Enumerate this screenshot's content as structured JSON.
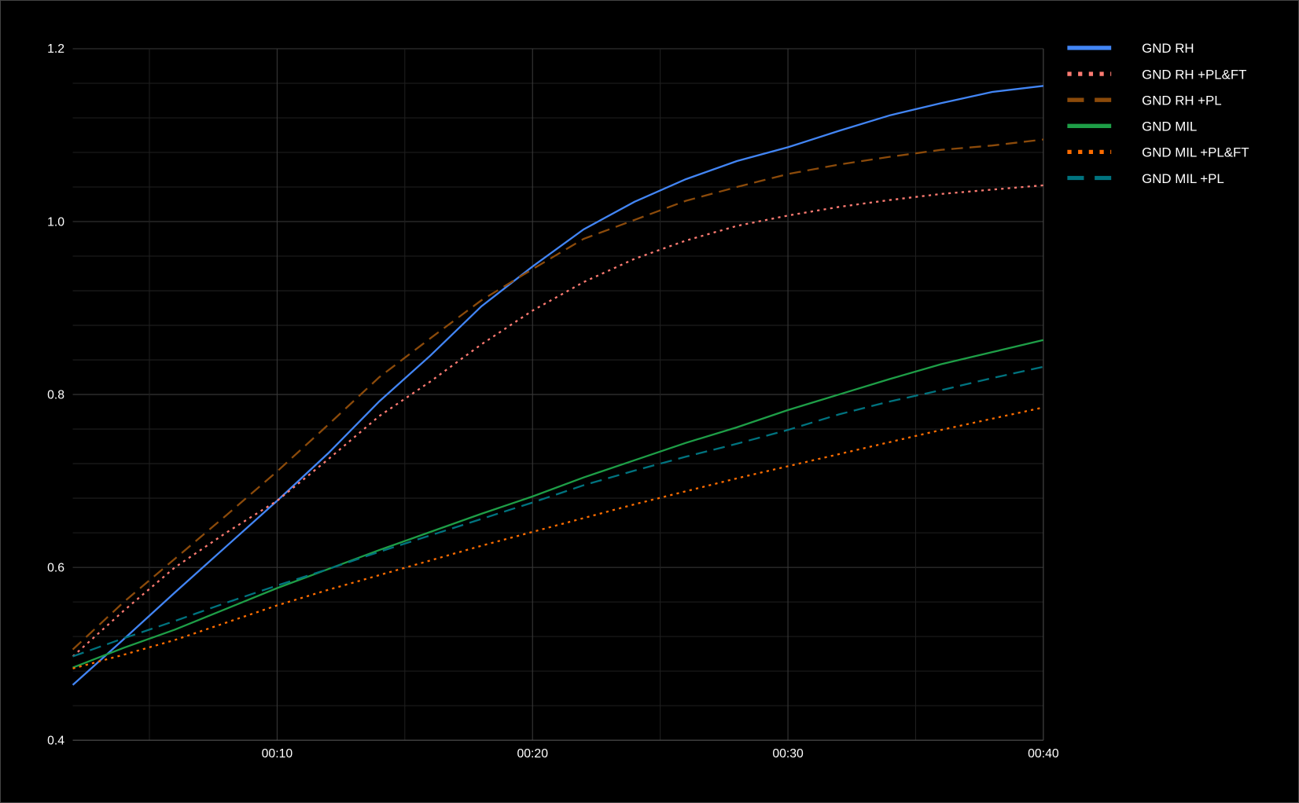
{
  "chart_data": {
    "type": "line",
    "title": "",
    "xlabel": "",
    "ylabel": "",
    "xlim": [
      2,
      40
    ],
    "ylim": [
      0.4,
      1.2
    ],
    "grid": true,
    "legend_position": "right",
    "x_ticks": [
      10,
      20,
      30,
      40
    ],
    "x_tick_labels": [
      "00:10",
      "00:20",
      "00:30",
      "00:40"
    ],
    "y_ticks": [
      0.4,
      0.6,
      0.8,
      1.0,
      1.2
    ],
    "y_tick_labels": [
      "0.4",
      "0.6",
      "0.8",
      "1.0",
      "1.2"
    ],
    "x": [
      2,
      4,
      6,
      8,
      10,
      12,
      14,
      16,
      18,
      20,
      22,
      24,
      26,
      28,
      30,
      32,
      34,
      36,
      38,
      40
    ],
    "series": [
      {
        "name": "GND RH",
        "color": "#4285f4",
        "style": "solid",
        "values": [
          0.464,
          0.517,
          0.571,
          0.624,
          0.677,
          0.732,
          0.792,
          0.845,
          0.902,
          0.948,
          0.991,
          1.023,
          1.049,
          1.07,
          1.086,
          1.105,
          1.123,
          1.137,
          1.15,
          1.157
        ]
      },
      {
        "name": "GND RH +PL&FT",
        "color": "#ff7b72",
        "style": "dotted",
        "values": [
          0.497,
          0.55,
          0.6,
          0.64,
          0.677,
          0.725,
          0.775,
          0.815,
          0.858,
          0.897,
          0.93,
          0.957,
          0.978,
          0.995,
          1.007,
          1.017,
          1.025,
          1.032,
          1.037,
          1.042
        ]
      },
      {
        "name": "GND RH +PL",
        "color": "#8b4a0a",
        "style": "dashed",
        "values": [
          0.505,
          0.56,
          0.61,
          0.66,
          0.711,
          0.765,
          0.82,
          0.865,
          0.909,
          0.945,
          0.98,
          1.002,
          1.024,
          1.04,
          1.055,
          1.066,
          1.075,
          1.083,
          1.088,
          1.095
        ]
      },
      {
        "name": "GND MIL",
        "color": "#1e9e47",
        "style": "solid",
        "values": [
          0.484,
          0.507,
          0.528,
          0.552,
          0.576,
          0.598,
          0.62,
          0.641,
          0.662,
          0.682,
          0.704,
          0.724,
          0.744,
          0.762,
          0.782,
          0.8,
          0.818,
          0.835,
          0.849,
          0.863
        ]
      },
      {
        "name": "GND MIL +PL&FT",
        "color": "#ff6d00",
        "style": "dotted",
        "values": [
          0.483,
          0.499,
          0.516,
          0.536,
          0.556,
          0.574,
          0.591,
          0.608,
          0.625,
          0.641,
          0.657,
          0.673,
          0.688,
          0.703,
          0.717,
          0.731,
          0.745,
          0.759,
          0.772,
          0.785
        ]
      },
      {
        "name": "GND MIL +PL",
        "color": "#00737f",
        "style": "dashed",
        "values": [
          0.497,
          0.518,
          0.538,
          0.559,
          0.579,
          0.598,
          0.618,
          0.637,
          0.656,
          0.675,
          0.695,
          0.712,
          0.728,
          0.743,
          0.759,
          0.777,
          0.792,
          0.805,
          0.819,
          0.832
        ]
      }
    ]
  }
}
